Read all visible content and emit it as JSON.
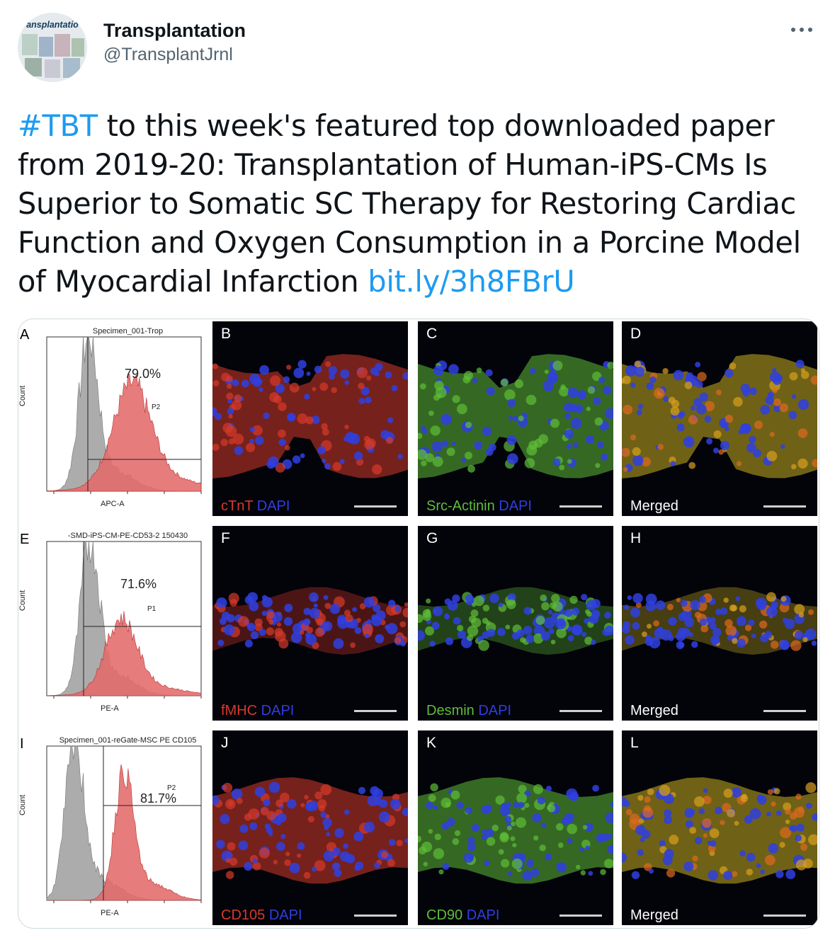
{
  "author": {
    "display_name": "Transplantation",
    "handle": "@TransplantJrnl",
    "avatar_text": "ansplantatio"
  },
  "more_icon": "more-horizontal-icon",
  "tweet": {
    "hashtag": "#TBT",
    "text": " to this week's featured top downloaded paper from 2019-20: Transplantation of Human-iPS-CMs Is Superior to Somatic SC Therapy for Restoring Cardiac Function and Oxygen Consumption in a Porcine Model of Myocardial Infarction ",
    "link": "bit.ly/3h8FBrU"
  },
  "colors": {
    "link": "#1d9bf0",
    "histogram_red": "#e36a6a",
    "histogram_gray": "#a3a3a3",
    "stain_red": "#d63a2a",
    "stain_green": "#5fbd38",
    "stain_blue": "#2f3fe0"
  },
  "figure": {
    "rows": [
      {
        "histogram": {
          "letter": "A",
          "title": "Specimen_001-Trop",
          "percent": "79.0%",
          "gate": "P2",
          "y_label": "Count",
          "x_label": "APC-A"
        },
        "images": [
          {
            "letter": "B",
            "stains": [
              {
                "text": "cTnT",
                "color": "red"
              },
              {
                "text": "DAPI",
                "color": "blue"
              }
            ]
          },
          {
            "letter": "C",
            "stains": [
              {
                "text": "Src-Actinin",
                "color": "green"
              },
              {
                "text": "DAPI",
                "color": "blue"
              }
            ]
          },
          {
            "letter": "D",
            "stains": [
              {
                "text": "Merged",
                "color": "white"
              }
            ]
          }
        ]
      },
      {
        "histogram": {
          "letter": "E",
          "title": "-SMD-iPS-CM-PE-CD53-2 150430",
          "percent": "71.6%",
          "gate": "P1",
          "y_label": "Count",
          "x_label": "PE-A"
        },
        "images": [
          {
            "letter": "F",
            "stains": [
              {
                "text": "fMHC",
                "color": "red"
              },
              {
                "text": "DAPI",
                "color": "blue"
              }
            ]
          },
          {
            "letter": "G",
            "stains": [
              {
                "text": "Desmin",
                "color": "green"
              },
              {
                "text": "DAPI",
                "color": "blue"
              }
            ]
          },
          {
            "letter": "H",
            "stains": [
              {
                "text": "Merged",
                "color": "white"
              }
            ]
          }
        ]
      },
      {
        "histogram": {
          "letter": "I",
          "title": "Specimen_001-reGate-MSC PE CD105",
          "percent": "81.7%",
          "gate": "P2",
          "y_label": "Count",
          "x_label": "PE-A"
        },
        "images": [
          {
            "letter": "J",
            "stains": [
              {
                "text": "CD105",
                "color": "red"
              },
              {
                "text": "DAPI",
                "color": "blue"
              }
            ]
          },
          {
            "letter": "K",
            "stains": [
              {
                "text": "CD90",
                "color": "green"
              },
              {
                "text": "DAPI",
                "color": "blue"
              }
            ]
          },
          {
            "letter": "L",
            "stains": [
              {
                "text": "Merged",
                "color": "white"
              }
            ]
          }
        ]
      }
    ]
  }
}
